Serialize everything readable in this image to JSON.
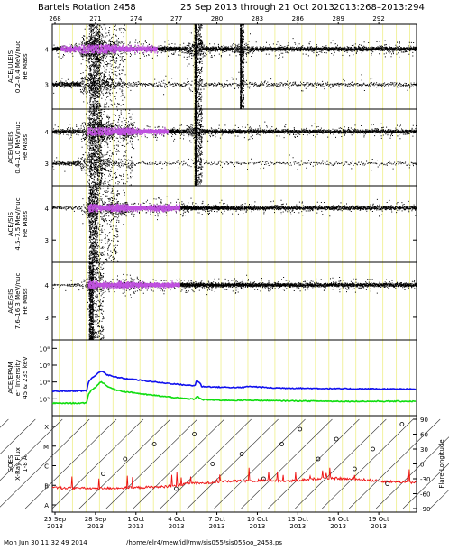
{
  "header": {
    "title": "Bartels Rotation 2458",
    "range": "25 Sep 2013 through 21 Oct 2013",
    "doy_range": "2013:268–2013:294"
  },
  "footer": {
    "timestamp": "Mon Jun 30 11:32:49 2014",
    "path": "/home/elr4/mew/idl/mw/sis055/sis055oo_2458.ps"
  },
  "chart_data": [
    {
      "type": "scatter",
      "panel": "ULEIS 0.2-0.4",
      "ylabel": [
        "ACE/ULEIS",
        "0.2–0.4 MeV/nuc",
        "He Mass"
      ],
      "y_ticks": [
        "4",
        "3"
      ],
      "ylim": [
        2.3,
        4.7
      ],
      "x_ticks_top": [
        "268",
        "271",
        "274",
        "277",
        "280",
        "283",
        "286",
        "289",
        "292"
      ],
      "bands": [
        {
          "mass": 4.0,
          "density": [
            [
              0,
              0.6
            ],
            [
              8,
              0.8
            ],
            [
              9,
              1.0
            ],
            [
              16,
              1.0
            ],
            [
              25,
              0.8
            ],
            [
              30,
              0.6
            ],
            [
              39,
              0.55
            ],
            [
              54,
              0.35
            ],
            [
              74,
              0.4
            ],
            [
              100,
              0.4
            ]
          ]
        },
        {
          "mass": 3.0,
          "density": [
            [
              5,
              0.3
            ],
            [
              12,
              0.5
            ],
            [
              15,
              0.4
            ],
            [
              18,
              0.1
            ],
            [
              40,
              0.08
            ]
          ]
        }
      ],
      "bursts": [
        [
          10,
          20
        ],
        [
          39,
          41
        ],
        [
          51.5,
          52.5
        ]
      ],
      "spread": [
        [
          10,
          0.9
        ],
        [
          12,
          0.9
        ],
        [
          15,
          0.5
        ],
        [
          30,
          0.2
        ],
        [
          39,
          0.6
        ],
        [
          52,
          0.4
        ]
      ]
    },
    {
      "type": "scatter",
      "panel": "ULEIS 0.4-1.0",
      "ylabel": [
        "ACE/ULEIS",
        "0.4–1.0 MeV/nuc",
        "He Mass"
      ],
      "y_ticks": [
        "4",
        "3"
      ],
      "ylim": [
        2.3,
        4.7
      ],
      "bands": [
        {
          "mass": 4.0,
          "density": [
            [
              0,
              0.25
            ],
            [
              9,
              0.4
            ],
            [
              10,
              1.0
            ],
            [
              20,
              0.95
            ],
            [
              30,
              0.7
            ],
            [
              40,
              0.4
            ],
            [
              60,
              0.3
            ],
            [
              100,
              0.3
            ]
          ]
        },
        {
          "mass": 3.0,
          "density": [
            [
              5,
              0.2
            ],
            [
              10,
              0.35
            ],
            [
              14,
              0.3
            ],
            [
              18,
              0.05
            ]
          ]
        }
      ],
      "bursts": [
        [
          10,
          22
        ],
        [
          39,
          41
        ]
      ],
      "spread": [
        [
          10,
          1.0
        ],
        [
          14,
          0.9
        ],
        [
          20,
          0.4
        ],
        [
          39,
          0.5
        ]
      ]
    },
    {
      "type": "scatter",
      "panel": "SIS 4.5-7.5",
      "ylabel": [
        "ACE/SIS",
        "4.5–7.5 MeV/nuc",
        "He Mass"
      ],
      "y_ticks": [
        "4",
        "3"
      ],
      "ylim": [
        2.3,
        4.7
      ],
      "bands": [
        {
          "mass": 4.0,
          "density": [
            [
              0,
              0.08
            ],
            [
              9,
              0.12
            ],
            [
              10,
              1.0
            ],
            [
              18,
              0.95
            ],
            [
              30,
              0.75
            ],
            [
              45,
              0.45
            ],
            [
              60,
              0.3
            ],
            [
              100,
              0.25
            ]
          ]
        }
      ],
      "bursts": [
        [
          10,
          18
        ]
      ],
      "spread": [
        [
          10,
          0.7
        ],
        [
          18,
          0.5
        ],
        [
          30,
          0.3
        ]
      ]
    },
    {
      "type": "scatter",
      "panel": "SIS 7.6-16.3",
      "ylabel": [
        "ACE/SIS",
        "7.6–16.3 MeV/nuc",
        "He Mass"
      ],
      "y_ticks": [
        "4",
        "3"
      ],
      "ylim": [
        2.3,
        4.7
      ],
      "bands": [
        {
          "mass": 4.0,
          "density": [
            [
              0,
              0.06
            ],
            [
              9,
              0.08
            ],
            [
              10,
              0.9
            ],
            [
              20,
              0.85
            ],
            [
              35,
              0.65
            ],
            [
              50,
              0.45
            ],
            [
              100,
              0.3
            ]
          ]
        }
      ],
      "bursts": [
        [
          10,
          14
        ]
      ],
      "spread": [
        [
          10,
          0.5
        ],
        [
          20,
          0.3
        ]
      ]
    },
    {
      "type": "line",
      "panel": "EPAM",
      "ylabel": [
        "ACE/EPAM",
        "e⁻ Intensity",
        "45 & 235 keV"
      ],
      "y_scale": "log",
      "y_ticks": [
        "10²",
        "10⁴",
        "10⁶",
        "10⁸"
      ],
      "ylim": [
        1,
        1000000000
      ],
      "series": [
        {
          "color": "#1010ee",
          "x": [
            0,
            9.4,
            9.6,
            10.5,
            12,
            13.5,
            15,
            17,
            20,
            25,
            30,
            35,
            39.2,
            39.6,
            41,
            45,
            52,
            54,
            60,
            70,
            80,
            90,
            100
          ],
          "y": [
            800,
            900,
            1400,
            20000,
            60000,
            200000,
            70000,
            40000,
            25000,
            14000,
            8000,
            5000,
            3500,
            15000,
            3000,
            2500,
            2200,
            3000,
            2000,
            1800,
            1600,
            1500,
            1400
          ]
        },
        {
          "color": "#10dd10",
          "x": [
            0,
            9.4,
            9.6,
            10.5,
            12,
            13.5,
            15,
            17,
            20,
            25,
            30,
            35,
            39.2,
            39.6,
            41,
            45,
            52,
            54,
            60,
            70,
            80,
            90,
            100
          ],
          "y": [
            30,
            30,
            60,
            800,
            2500,
            10000,
            3000,
            1200,
            700,
            350,
            200,
            120,
            90,
            200,
            80,
            70,
            65,
            70,
            60,
            55,
            50,
            50,
            50
          ]
        }
      ]
    },
    {
      "type": "line",
      "panel": "GOES",
      "ylabel": [
        "GOES",
        "X-Ray Flux",
        "1-8 Å"
      ],
      "y_ticks_left": [
        "X",
        "M",
        "C",
        "B",
        "A"
      ],
      "y_ticks_right": [
        "90",
        "60",
        "30",
        "0",
        "-30",
        "-60",
        "-90"
      ],
      "ylabel_right": "Flare Longitude",
      "x_ticks": [
        "25 Sep",
        "28 Sep",
        "1 Oct",
        "4 Oct",
        "7 Oct",
        "10 Oct",
        "13 Oct",
        "16 Oct",
        "19 Oct"
      ],
      "x_tick_year": "2013",
      "series": [
        {
          "color": "#ee1010",
          "x": [
            0,
            10,
            20,
            30,
            35,
            38,
            40,
            45,
            50,
            55,
            60,
            65,
            70,
            75,
            80,
            85,
            90,
            95,
            100
          ],
          "y": [
            0.3,
            0.25,
            0.28,
            0.35,
            0.45,
            0.6,
            0.55,
            0.65,
            0.7,
            0.72,
            0.75,
            0.7,
            0.8,
            0.9,
            0.85,
            0.8,
            0.7,
            0.65,
            0.6
          ]
        }
      ],
      "flares_lon": [
        [
          14,
          -20
        ],
        [
          20,
          10
        ],
        [
          28,
          40
        ],
        [
          34,
          -50
        ],
        [
          39,
          60
        ],
        [
          44,
          0
        ],
        [
          52,
          20
        ],
        [
          58,
          -30
        ],
        [
          63,
          40
        ],
        [
          68,
          70
        ],
        [
          73,
          10
        ],
        [
          78,
          50
        ],
        [
          83,
          -10
        ],
        [
          88,
          30
        ],
        [
          92,
          -40
        ],
        [
          96,
          80
        ]
      ]
    }
  ]
}
